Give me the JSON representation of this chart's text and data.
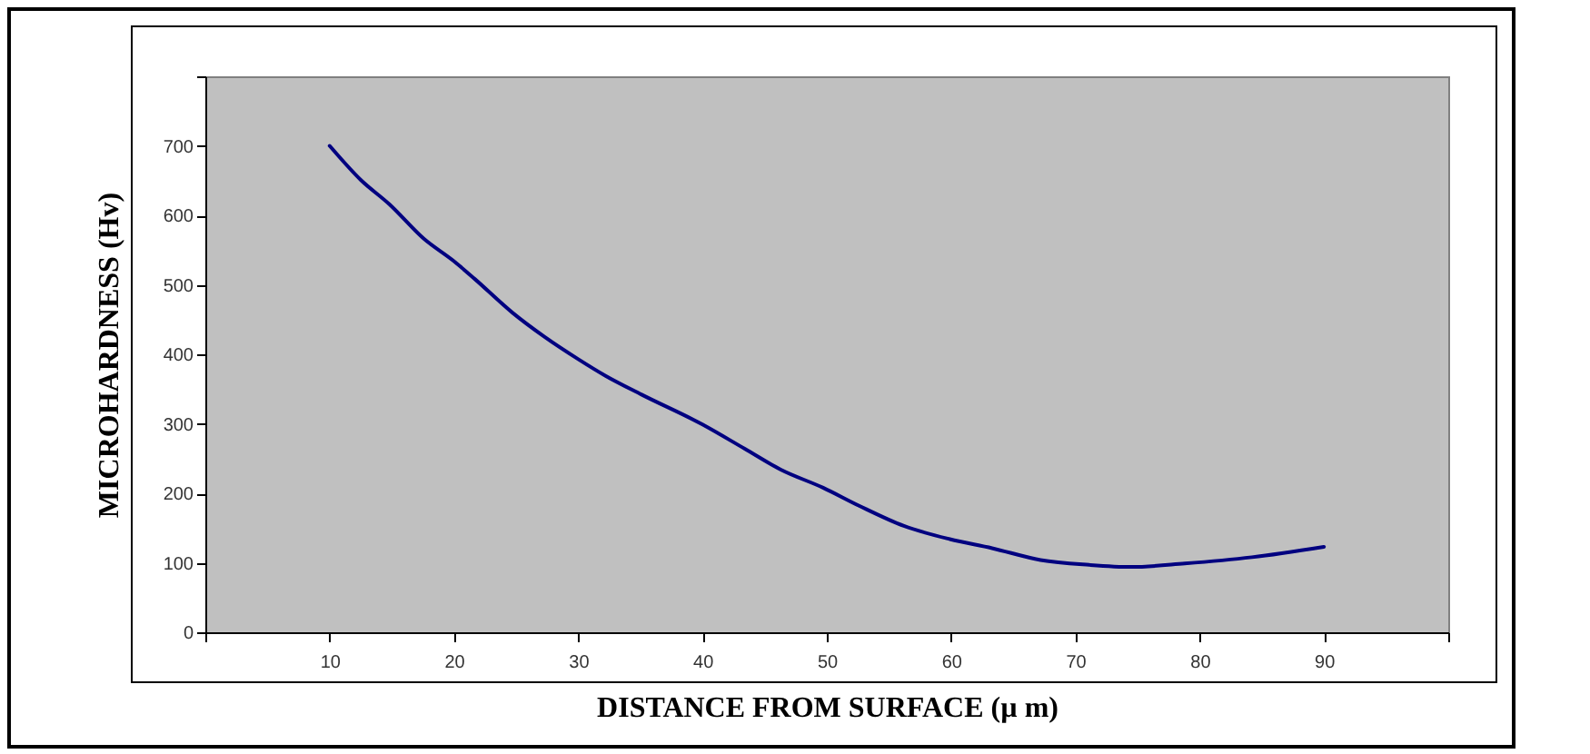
{
  "chart_data": {
    "type": "line",
    "xlabel": "DISTANCE FROM SURFACE  (µ m)",
    "ylabel": "MICROHARDNESS (Hv)",
    "x": [
      10,
      12.5,
      14.8,
      17.6,
      20,
      21.7,
      24.7,
      27.3,
      30,
      32.2,
      35.1,
      40,
      43.4,
      46.3,
      49.7,
      52.6,
      56.2,
      59.9,
      63.3,
      67.2,
      71.1,
      74.5,
      78.8,
      84.2,
      90
    ],
    "series": [
      {
        "color": "#000080",
        "values": [
          700,
          651,
          616,
          566,
          534,
          508,
          460,
          425,
          393,
          369,
          342,
          299,
          264,
          234,
          208,
          182,
          153,
          134,
          121,
          104,
          97,
          94,
          99,
          108,
          123
        ]
      }
    ],
    "xlim": [
      0,
      100
    ],
    "xticks": [
      {
        "value": 0,
        "label": null
      },
      10,
      20,
      30,
      40,
      50,
      60,
      70,
      80,
      90,
      {
        "value": 100,
        "label": null
      }
    ],
    "ylim": [
      0,
      800
    ],
    "yticks": [
      0,
      100,
      200,
      300,
      400,
      500,
      600,
      700,
      {
        "value": 800,
        "label": null
      }
    ],
    "grid": false,
    "marker": "none"
  }
}
